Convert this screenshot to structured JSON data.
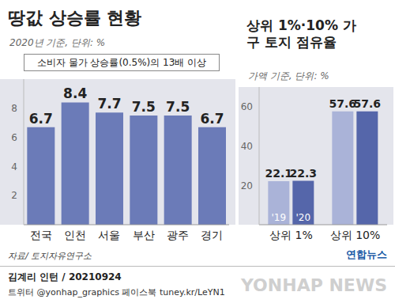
{
  "chart_data": [
    {
      "type": "bar",
      "title": "땅값 상승률 현황",
      "subtitle": "2020년 기준, 단위: %",
      "annotation": "소비자 물가 상승률(0.5%)의 13배 이상",
      "categories": [
        "전국",
        "인천",
        "서울",
        "부산",
        "광주",
        "경기"
      ],
      "values": [
        6.7,
        8.4,
        7.7,
        7.5,
        7.5,
        6.7
      ],
      "color": "#6b7bb8",
      "ylim": [
        0,
        10
      ],
      "yticks": [
        2,
        4,
        6,
        8
      ],
      "grid": false,
      "data_labels": true
    },
    {
      "type": "bar",
      "title": "상위 1%·10% 가구 토지 점유율",
      "subtitle": "가액 기준, 단위: %",
      "categories": [
        "상위 1%",
        "상위 10%"
      ],
      "series": [
        {
          "name": "'19",
          "color": "#aab3d8",
          "values": [
            22.1,
            57.6
          ]
        },
        {
          "name": "'20",
          "color": "#5566aa",
          "values": [
            22.3,
            57.6
          ]
        }
      ],
      "ylim": [
        0,
        70
      ],
      "yticks": [
        20,
        40,
        60
      ],
      "grid": false,
      "data_labels": true
    }
  ],
  "source": "자료/ 토지자유연구소",
  "byline": "김계리 인턴 / 20210924",
  "social": "트위터 @yonhap_graphics 페이스북 tuney.kr/LeYN1",
  "logo": "연합뉴스",
  "watermark": "YONHAP NEWS"
}
